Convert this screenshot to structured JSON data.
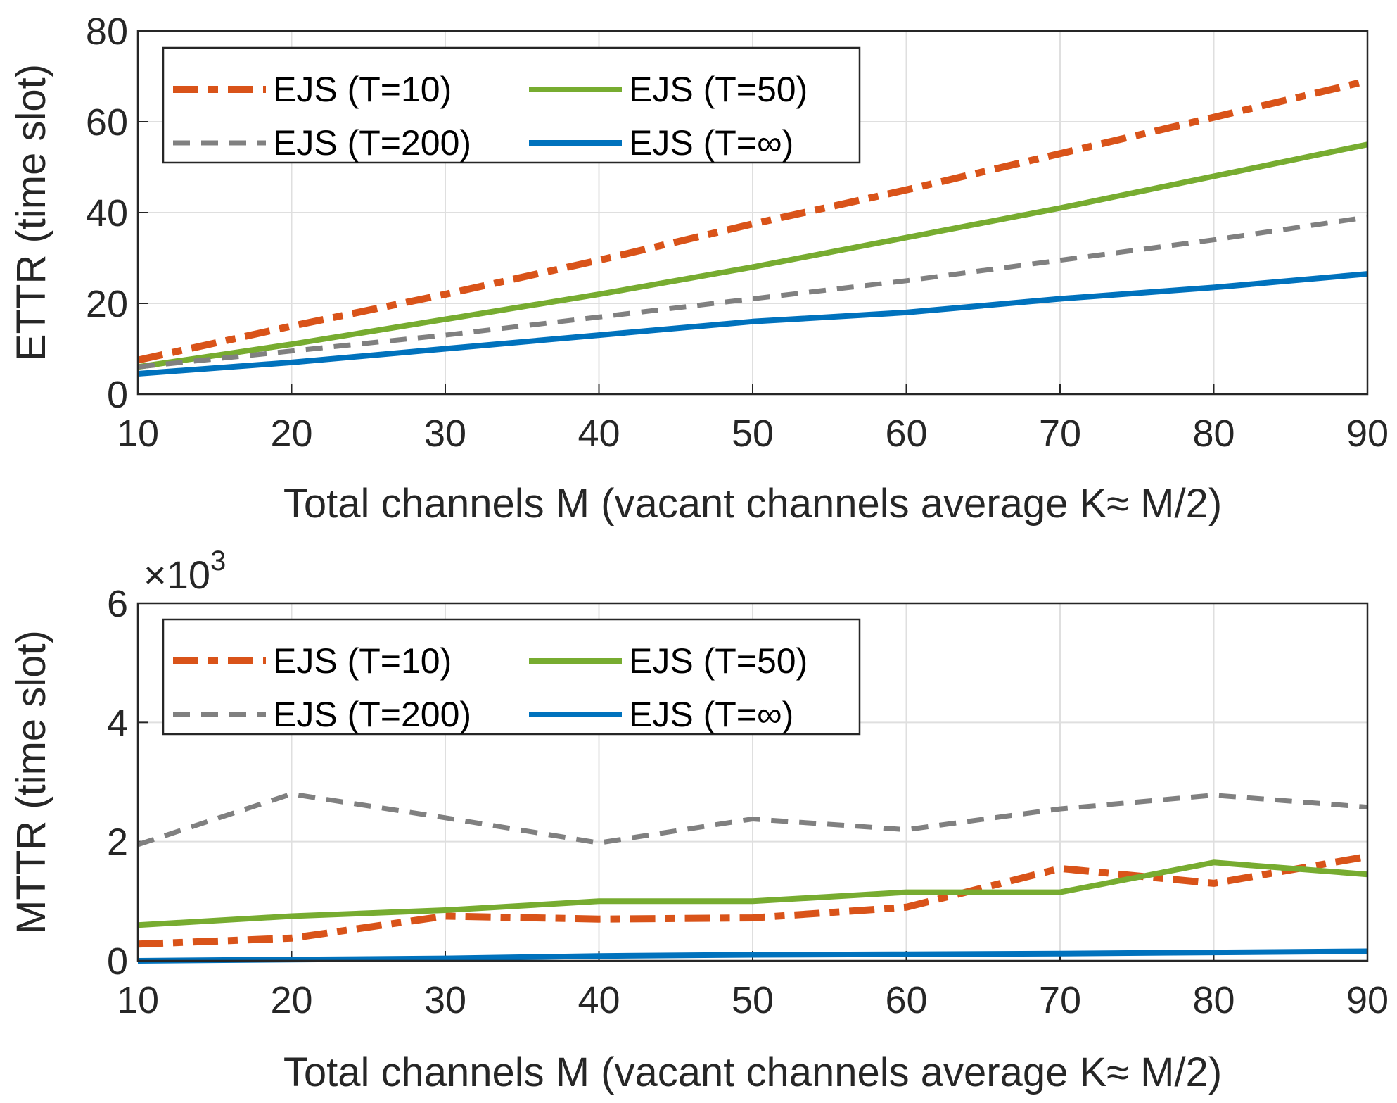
{
  "chart_data": [
    {
      "type": "line",
      "x": [
        10,
        20,
        30,
        40,
        50,
        60,
        70,
        80,
        90
      ],
      "xlabel": "Total channels M (vacant channels average K≈ M/2)",
      "ylabel": "ETTR (time slot)",
      "xlim": [
        10,
        90
      ],
      "ylim": [
        0,
        80
      ],
      "xticks": [
        "10",
        "20",
        "30",
        "40",
        "50",
        "60",
        "70",
        "80",
        "90"
      ],
      "yticks": [
        "0",
        "20",
        "40",
        "60",
        "80"
      ],
      "grid": true,
      "legend_position": "top-left",
      "series": [
        {
          "name": "EJS (T=10)",
          "color": "#D95319",
          "style": "dashdot",
          "values": [
            7.5,
            15,
            22,
            29.5,
            37.5,
            45,
            53,
            61,
            69
          ]
        },
        {
          "name": "EJS (T=50)",
          "color": "#77AC30",
          "style": "solid",
          "values": [
            6,
            11,
            16.5,
            22,
            28,
            34.5,
            41,
            48,
            55
          ]
        },
        {
          "name": "EJS (T=200)",
          "color": "#808080",
          "style": "dashed",
          "values": [
            6,
            9.5,
            13,
            17,
            21,
            25,
            29.5,
            34,
            39
          ]
        },
        {
          "name": "EJS (T=∞)",
          "color": "#0072BD",
          "style": "solid",
          "values": [
            4.5,
            7,
            10,
            13,
            16,
            18,
            21,
            23.5,
            26.5
          ]
        }
      ]
    },
    {
      "type": "line",
      "x": [
        10,
        20,
        30,
        40,
        50,
        60,
        70,
        80,
        90
      ],
      "xlabel": "Total channels M (vacant channels average K≈ M/2)",
      "ylabel": "MTTR (time slot)",
      "xlim": [
        10,
        90
      ],
      "ylim": [
        0,
        6000
      ],
      "xticks": [
        "10",
        "20",
        "30",
        "40",
        "50",
        "60",
        "70",
        "80",
        "90"
      ],
      "yticks": [
        "0",
        "2",
        "4",
        "6"
      ],
      "y_multiplier_base": "×10",
      "y_multiplier_exp": "3",
      "grid": true,
      "legend_position": "top-left",
      "series": [
        {
          "name": "EJS (T=10)",
          "color": "#D95319",
          "style": "dashdot",
          "values": [
            280,
            380,
            750,
            700,
            720,
            900,
            1550,
            1300,
            1750
          ]
        },
        {
          "name": "EJS (T=50)",
          "color": "#77AC30",
          "style": "solid",
          "values": [
            600,
            750,
            850,
            1000,
            1000,
            1150,
            1150,
            1650,
            1450
          ]
        },
        {
          "name": "EJS (T=200)",
          "color": "#808080",
          "style": "dashed",
          "values": [
            1950,
            2800,
            2400,
            1980,
            2380,
            2200,
            2550,
            2780,
            2580
          ]
        },
        {
          "name": "EJS (T=∞)",
          "color": "#0072BD",
          "style": "solid",
          "values": [
            0,
            20,
            40,
            80,
            100,
            110,
            120,
            140,
            160
          ]
        }
      ]
    }
  ]
}
